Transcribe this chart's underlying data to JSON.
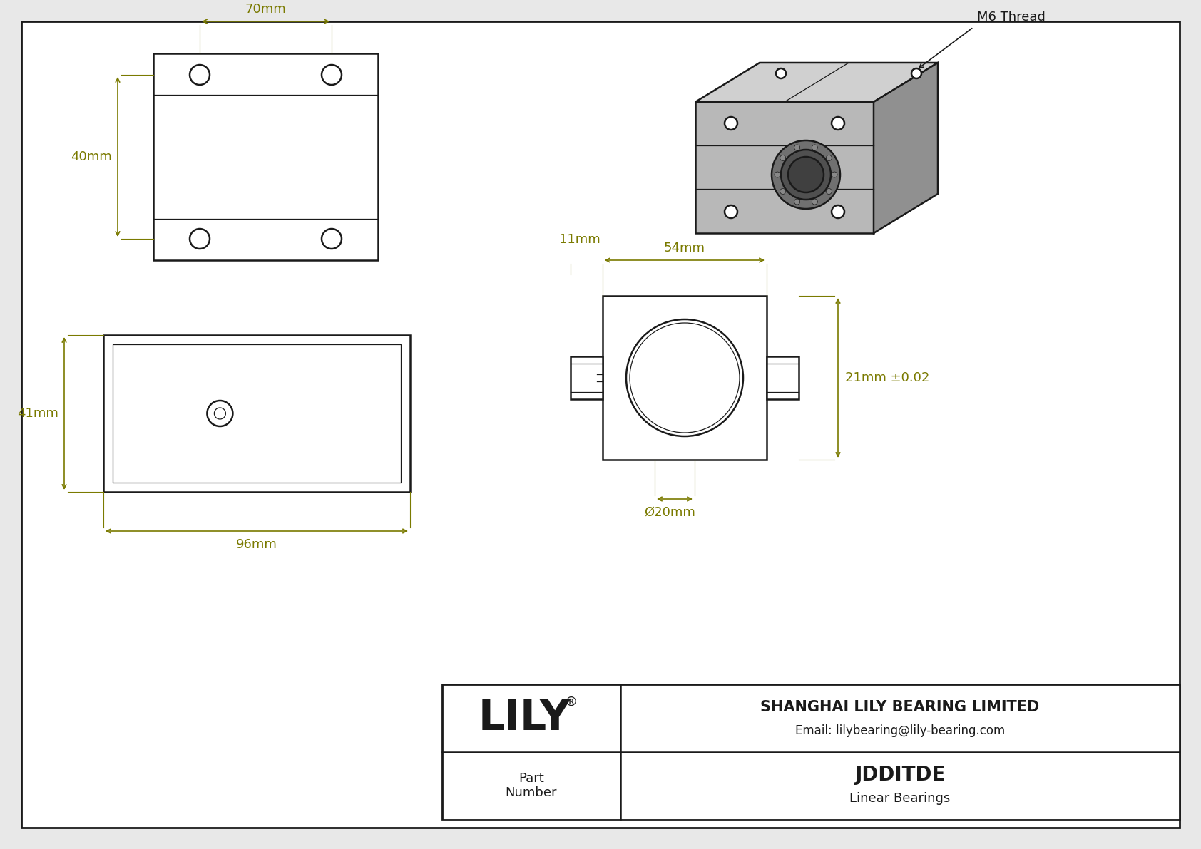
{
  "bg_color": "#e8e8e8",
  "drawing_bg": "#ffffff",
  "line_color": "#1a1a1a",
  "dim_color": "#7a7a00",
  "text_color": "#1a1a1a",
  "part_number": "JDDITDE",
  "part_type": "Linear Bearings",
  "company": "SHANGHAI LILY BEARING LIMITED",
  "email": "Email: lilybearing@lily-bearing.com",
  "logo": "LILY",
  "dim_70mm": "70mm",
  "dim_40mm": "40mm",
  "dim_41mm": "41mm",
  "dim_96mm": "96mm",
  "dim_11mm": "11mm",
  "dim_54mm": "54mm",
  "dim_21mm": "21mm ±0.02",
  "dim_20mm": "Ø20mm",
  "thread_label": "M6 Thread"
}
